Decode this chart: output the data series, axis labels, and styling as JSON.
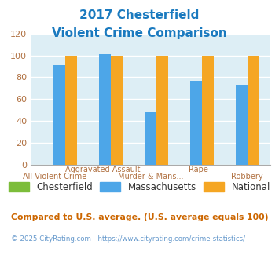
{
  "title_line1": "2017 Chesterfield",
  "title_line2": "Violent Crime Comparison",
  "title_color": "#1a7abf",
  "categories": [
    "All Violent Crime",
    "Aggravated Assault",
    "Murder & Mans...",
    "Rape",
    "Robbery"
  ],
  "chesterfield_values": [
    0,
    0,
    0,
    0,
    0
  ],
  "massachusetts_values": [
    91,
    101,
    48,
    77,
    73
  ],
  "national_values": [
    100,
    100,
    100,
    100,
    100
  ],
  "chesterfield_color": "#7cbd3a",
  "massachusetts_color": "#4da6e8",
  "national_color": "#f5a623",
  "ylim": [
    0,
    120
  ],
  "yticks": [
    0,
    20,
    40,
    60,
    80,
    100,
    120
  ],
  "bg_color": "#ddeef5",
  "legend_labels": [
    "Chesterfield",
    "Massachusetts",
    "National"
  ],
  "footer_text": "Compared to U.S. average. (U.S. average equals 100)",
  "footer_color": "#cc6600",
  "credit_text": "© 2025 CityRating.com - https://www.cityrating.com/crime-statistics/",
  "credit_color": "#6699cc",
  "grid_color": "#ffffff",
  "tick_label_color": "#b07040",
  "label_top": [
    "",
    "Aggravated Assault",
    "",
    "Rape",
    ""
  ],
  "label_bot": [
    "All Violent Crime",
    "",
    "Murder & Mans...",
    "",
    "Robbery"
  ]
}
